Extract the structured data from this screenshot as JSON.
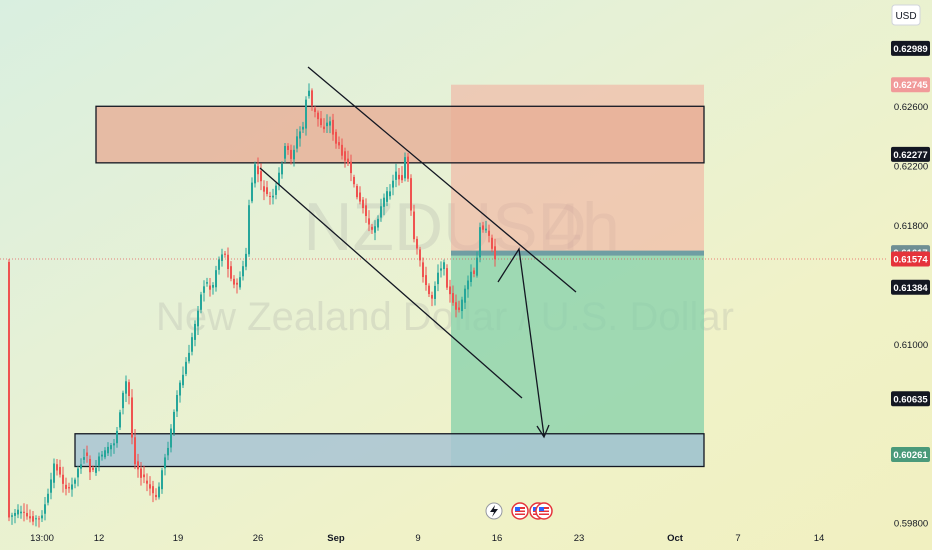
{
  "chart_data": {
    "type": "candlestick",
    "symbol": "NZDUSD",
    "timeframe": "4h",
    "description": "New Zealand Dollar / U.S. Dollar",
    "currency": "USD",
    "ylim": [
      0.5974,
      0.6322
    ],
    "price_axis_labels": [
      "0.62600",
      "0.62200",
      "0.61800",
      "0.61000",
      "0.59800"
    ],
    "badges": [
      {
        "text": "0.62989",
        "price": 0.62989,
        "bg": "#131722",
        "fg": "#ffffff"
      },
      {
        "text": "0.62745",
        "price": 0.62745,
        "bg": "#f19a9a",
        "fg": "#ffffff"
      },
      {
        "text": "0.62277",
        "price": 0.62277,
        "bg": "#131722",
        "fg": "#ffffff"
      },
      {
        "text": "0.61617",
        "price": 0.61617,
        "bg": "#6f8f94",
        "fg": "#ffffff"
      },
      {
        "text": "0.61574",
        "price": 0.61574,
        "bg": "#e5333b",
        "fg": "#ffffff"
      },
      {
        "text": "0.61384",
        "price": 0.61384,
        "bg": "#131722",
        "fg": "#ffffff"
      },
      {
        "text": "0.60635",
        "price": 0.60635,
        "bg": "#131722",
        "fg": "#ffffff"
      },
      {
        "text": "0.60261",
        "price": 0.60261,
        "bg": "#4a9a7a",
        "fg": "#ffffff"
      }
    ],
    "time_axis_labels": [
      "13:00",
      "12",
      "19",
      "26",
      "Sep",
      "9",
      "16",
      "23",
      "Oct",
      "7",
      "14"
    ],
    "current_price": 0.61574,
    "zones": {
      "supply": [
        0.6222,
        0.626
      ],
      "demand": [
        0.6018,
        0.604
      ]
    },
    "position": {
      "direction": "short",
      "stop": 0.62745,
      "entry": 0.61617,
      "target": 0.6018
    },
    "colors": {
      "up": "#26a69a",
      "down": "#ef5350",
      "stop_area": "#f2a99a",
      "target_area": "#84d0a9",
      "supply_fill": "#e7ae96",
      "demand_fill": "#a8c4d4"
    }
  }
}
